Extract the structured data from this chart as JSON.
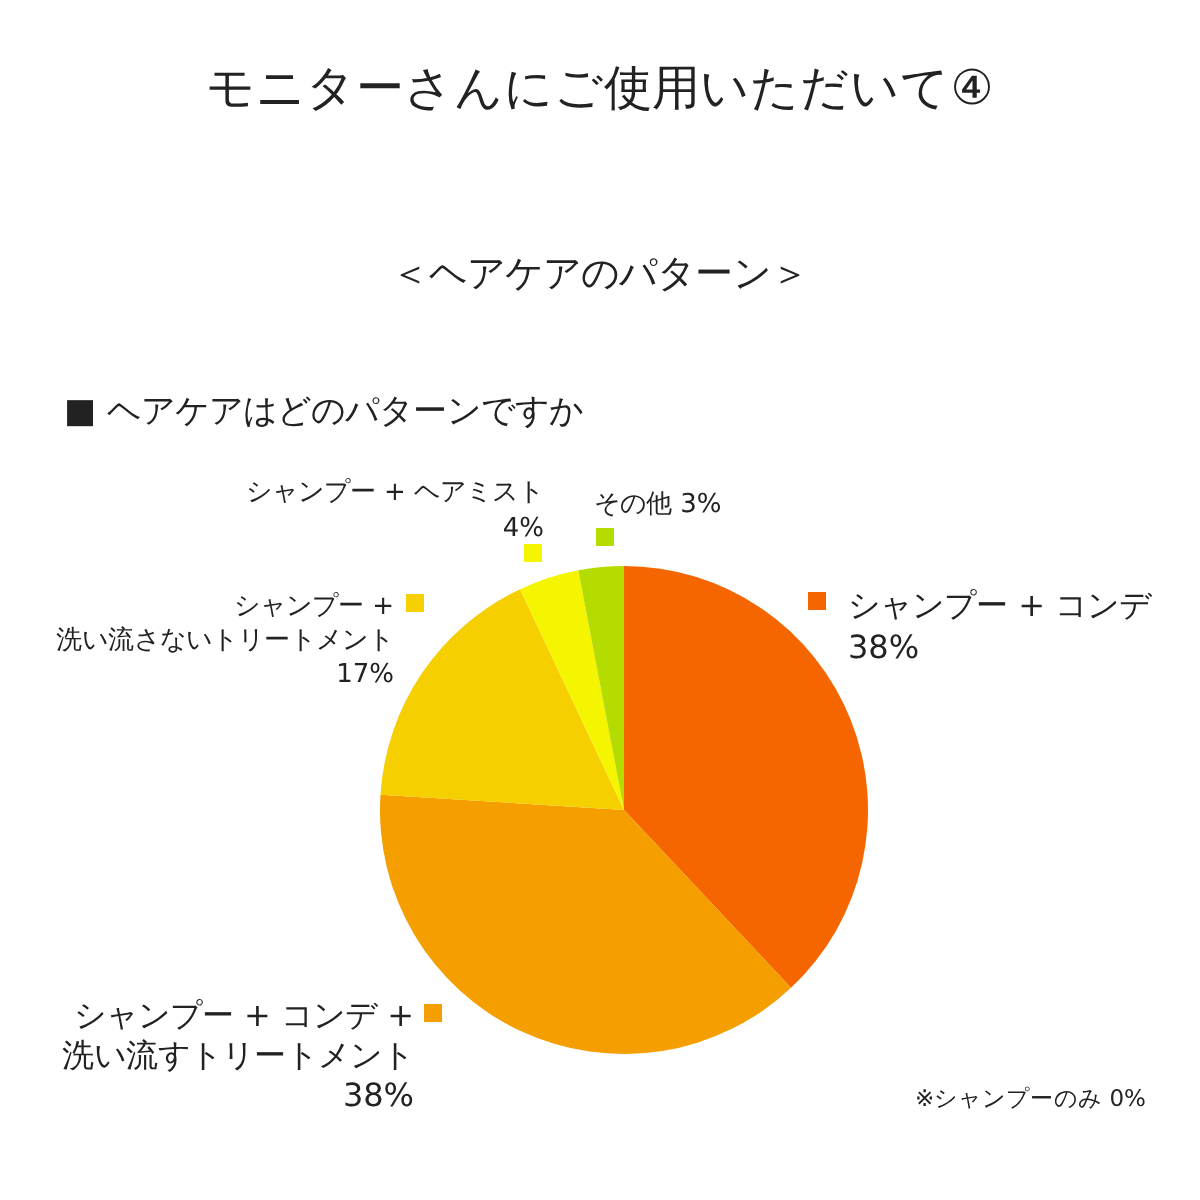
{
  "chart_data": {
    "type": "pie",
    "title": "モニターさんにご使用いただいて④",
    "subtitle": "＜ヘアケアのパターン＞",
    "categories": [
      "シャンプー + コンデ",
      "シャンプー + コンデ +\n洗い流すトリートメント",
      "シャンプー +\n洗い流さないトリートメント",
      "シャンプー + ヘアミスト",
      "その他 3%"
    ],
    "values": [
      38,
      38,
      17,
      4,
      3
    ],
    "colors": [
      "#f56600",
      "#f59e00",
      "#f5cf00",
      "#f5f500",
      "#b4dc00"
    ],
    "legend": "left",
    "value_labels": [
      "38%",
      "38%",
      "17%",
      "4%",
      null
    ],
    "annotations": [
      "■ ヘアケアはどのパターンですか",
      "※シャンプーのみ 0%"
    ]
  }
}
